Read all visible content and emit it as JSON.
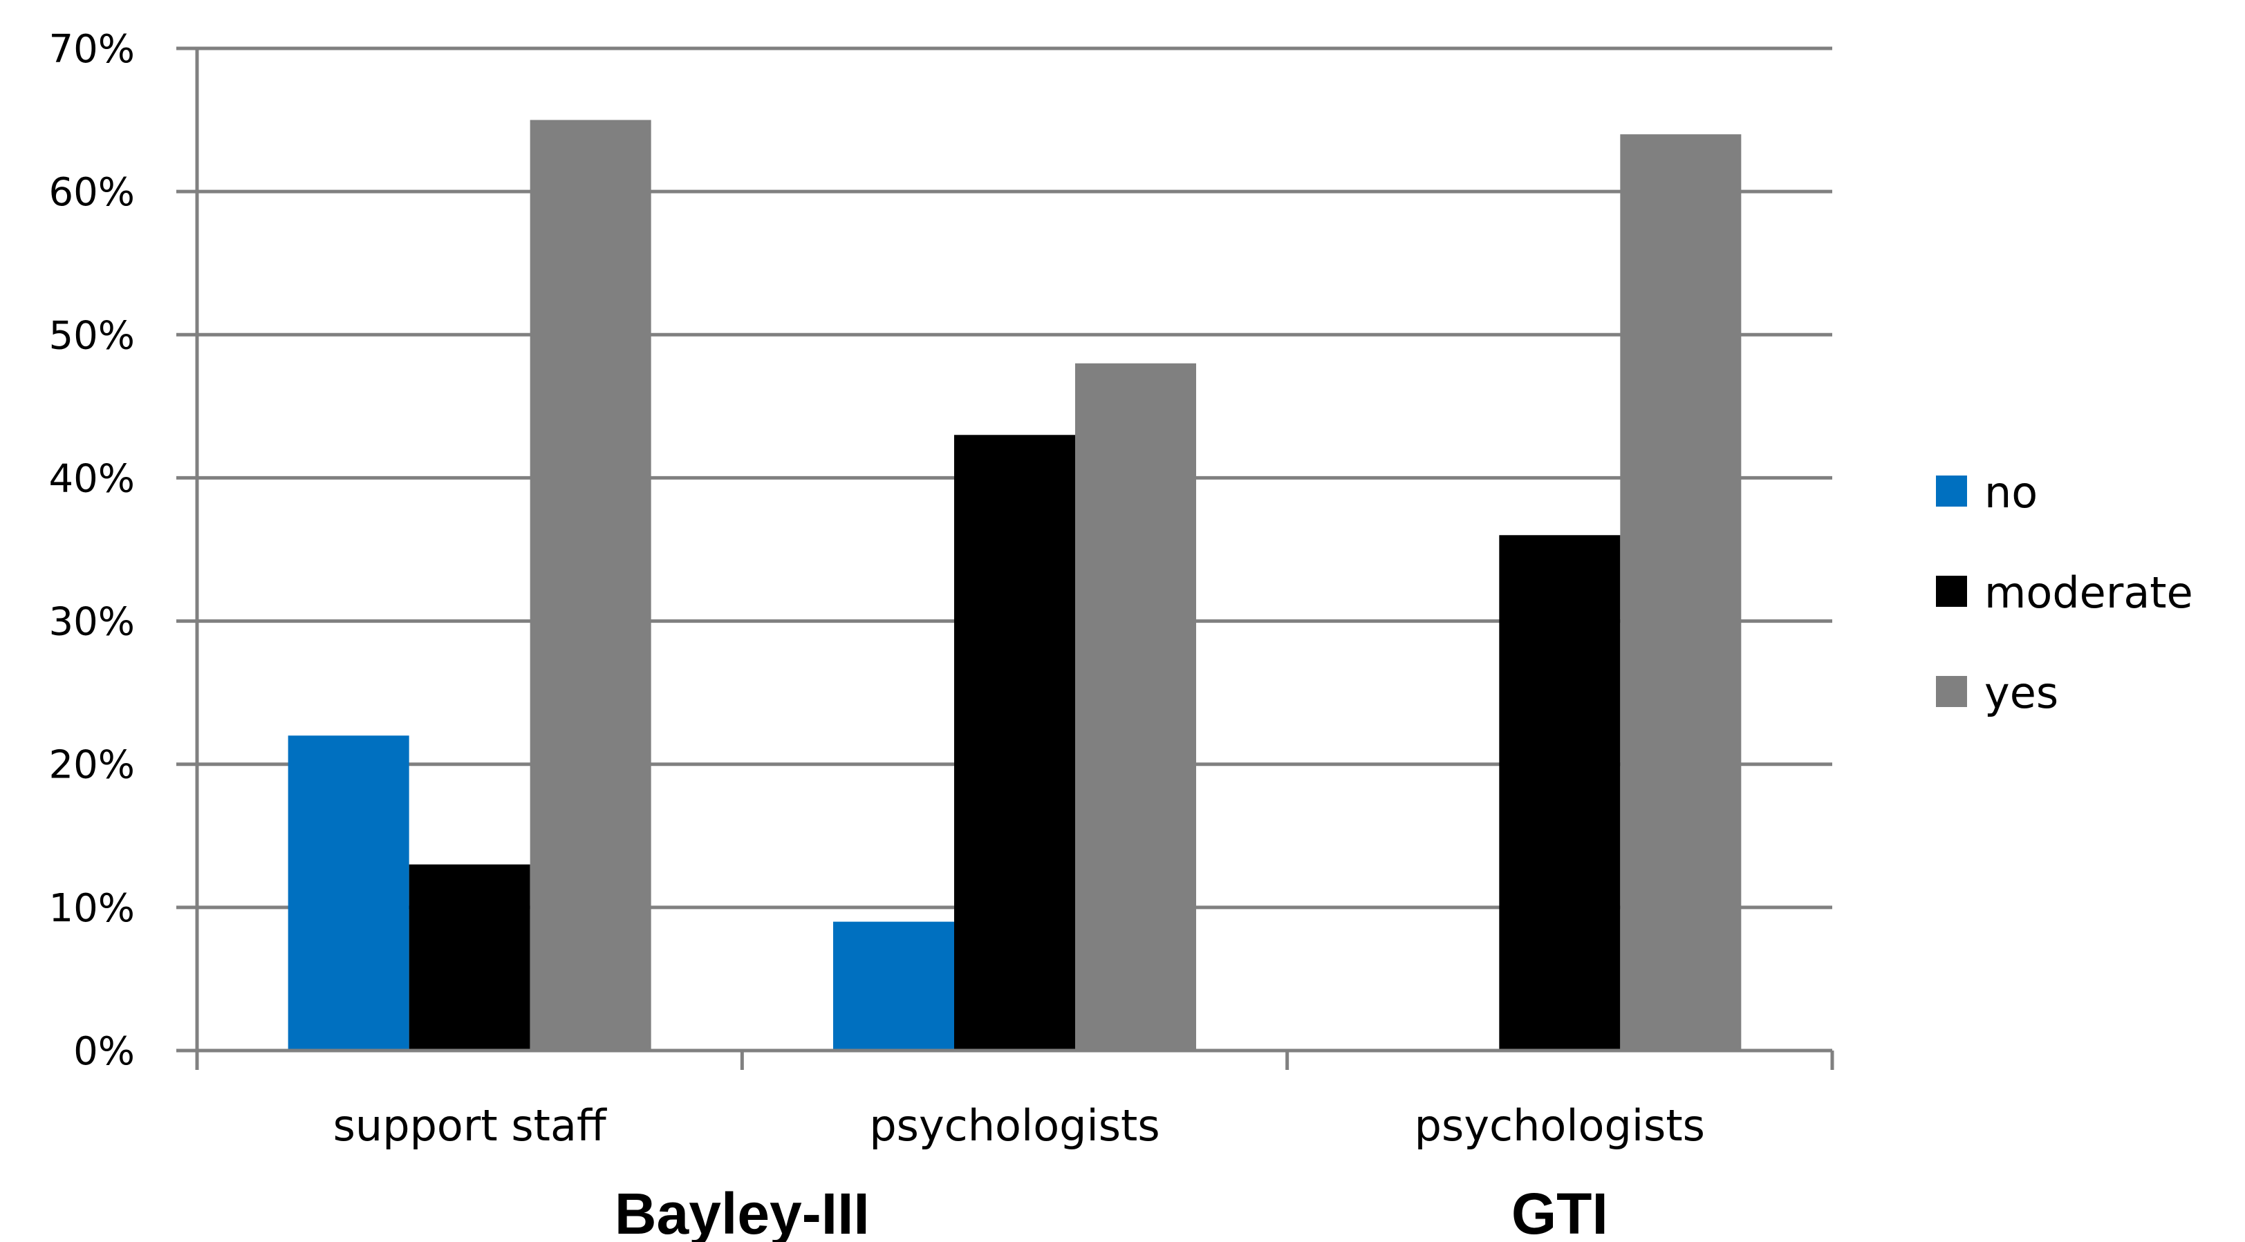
{
  "chart_data": {
    "type": "bar",
    "categories": [
      "support staff",
      "psychologists",
      "psychologists"
    ],
    "groups": [
      {
        "label": "Bayley-III",
        "categories": [
          0,
          1
        ]
      },
      {
        "label": "GTI",
        "categories": [
          2
        ]
      }
    ],
    "series": [
      {
        "name": "no",
        "color": "#0070c0",
        "values": [
          22,
          9,
          0
        ]
      },
      {
        "name": "moderate",
        "color": "#000000",
        "values": [
          13,
          43,
          36
        ]
      },
      {
        "name": "yes",
        "color": "#808080",
        "values": [
          65,
          48,
          64
        ]
      }
    ],
    "yticks": [
      "0%",
      "10%",
      "20%",
      "30%",
      "40%",
      "50%",
      "60%",
      "70%"
    ],
    "ylim": [
      0,
      70
    ],
    "ytick_step": 10,
    "grid": true,
    "legend_position": "right",
    "gridline_color": "#808080"
  }
}
